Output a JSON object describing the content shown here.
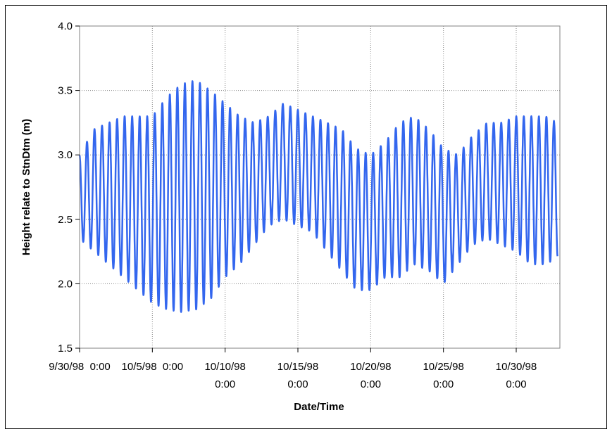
{
  "chart_data": {
    "type": "line",
    "title": "",
    "xlabel": "Date/Time",
    "ylabel": "Height relate to StnDtm (m)",
    "ylim": [
      1.5,
      4.0
    ],
    "yticks": [
      "1.5",
      "2.0",
      "2.5",
      "3.0",
      "3.5",
      "4.0"
    ],
    "xlim": [
      "1998-09-30 00:00",
      "2 Nov 1998 00:00"
    ],
    "xticks": [
      {
        "date": "1998-09-30",
        "line1": "9/30/98  0:00",
        "line2": ""
      },
      {
        "date": "1998-10-05",
        "line1": "10/5/98  0:00",
        "line2": ""
      },
      {
        "date": "1998-10-10",
        "line1": "10/10/98",
        "line2": "0:00"
      },
      {
        "date": "1998-10-15",
        "line1": "10/15/98",
        "line2": "0:00"
      },
      {
        "date": "1998-10-20",
        "line1": "10/20/98",
        "line2": "0:00"
      },
      {
        "date": "1998-10-25",
        "line1": "10/25/98",
        "line2": "0:00"
      },
      {
        "date": "1998-10-30",
        "line1": "10/30/98",
        "line2": "0:00"
      }
    ],
    "grid": true,
    "series_color": "#3366ee",
    "tide_envelope": [
      {
        "date": "1998-09-30 00:00",
        "high": 3.0,
        "low": 2.35
      },
      {
        "date": "1998-10-01 00:00",
        "high": 3.2,
        "low": 2.25
      },
      {
        "date": "1998-10-02 00:00",
        "high": 3.25,
        "low": 2.15
      },
      {
        "date": "1998-10-03 00:00",
        "high": 3.3,
        "low": 2.05
      },
      {
        "date": "1998-10-04 00:00",
        "high": 3.3,
        "low": 1.95
      },
      {
        "date": "1998-10-05 00:00",
        "high": 3.3,
        "low": 1.85
      },
      {
        "date": "1998-10-06 00:00",
        "high": 3.45,
        "low": 1.8
      },
      {
        "date": "1998-10-07 00:00",
        "high": 3.55,
        "low": 1.78
      },
      {
        "date": "1998-10-08 00:00",
        "high": 3.58,
        "low": 1.8
      },
      {
        "date": "1998-10-09 00:00",
        "high": 3.5,
        "low": 1.88
      },
      {
        "date": "1998-10-10 00:00",
        "high": 3.4,
        "low": 2.05
      },
      {
        "date": "1998-10-11 00:00",
        "high": 3.3,
        "low": 2.15
      },
      {
        "date": "1998-10-12 00:00",
        "high": 3.25,
        "low": 2.3
      },
      {
        "date": "1998-10-13 00:00",
        "high": 3.3,
        "low": 2.45
      },
      {
        "date": "1998-10-14 00:00",
        "high": 3.4,
        "low": 2.5
      },
      {
        "date": "1998-10-15 00:00",
        "high": 3.35,
        "low": 2.45
      },
      {
        "date": "1998-10-16 00:00",
        "high": 3.3,
        "low": 2.4
      },
      {
        "date": "1998-10-17 00:00",
        "high": 3.25,
        "low": 2.25
      },
      {
        "date": "1998-10-18 00:00",
        "high": 3.2,
        "low": 2.1
      },
      {
        "date": "1998-10-19 00:00",
        "high": 3.05,
        "low": 1.95
      },
      {
        "date": "1998-10-20 00:00",
        "high": 3.0,
        "low": 1.95
      },
      {
        "date": "1998-10-21 00:00",
        "high": 3.1,
        "low": 2.05
      },
      {
        "date": "1998-10-22 00:00",
        "high": 3.25,
        "low": 2.05
      },
      {
        "date": "1998-10-23 00:00",
        "high": 3.3,
        "low": 2.15
      },
      {
        "date": "1998-10-24 00:00",
        "high": 3.2,
        "low": 2.1
      },
      {
        "date": "1998-10-25 00:00",
        "high": 3.05,
        "low": 2.0
      },
      {
        "date": "1998-10-26 00:00",
        "high": 3.0,
        "low": 2.15
      },
      {
        "date": "1998-10-27 00:00",
        "high": 3.15,
        "low": 2.3
      },
      {
        "date": "1998-10-28 00:00",
        "high": 3.25,
        "low": 2.35
      },
      {
        "date": "1998-10-29 00:00",
        "high": 3.25,
        "low": 2.3
      },
      {
        "date": "1998-10-30 00:00",
        "high": 3.3,
        "low": 2.25
      },
      {
        "date": "1998-10-31 00:00",
        "high": 3.3,
        "low": 2.15
      },
      {
        "date": "1998-11-01 00:00",
        "high": 3.3,
        "low": 2.15
      },
      {
        "date": "1998-11-01 20:00",
        "high": 3.25,
        "low": 2.2
      }
    ],
    "tidal_period_hours": 12.42
  }
}
